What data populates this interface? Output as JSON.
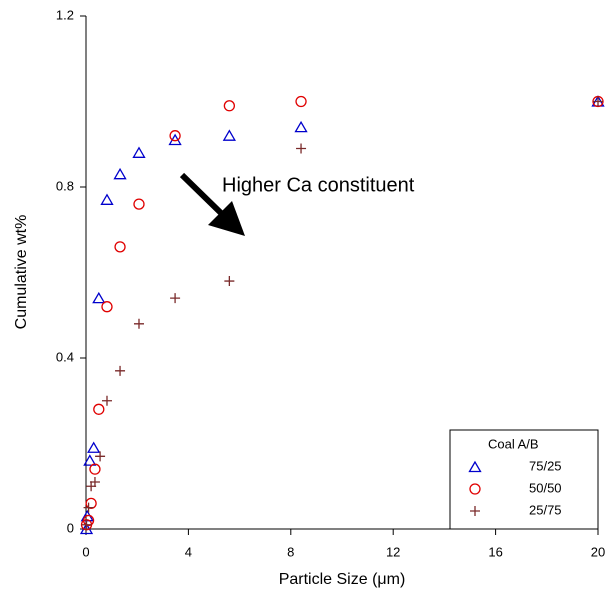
{
  "chart_data": {
    "type": "scatter",
    "xlabel": "Particle Size (μm)",
    "ylabel": "Cumulative wt%",
    "annotation": "Higher Ca constituent",
    "xlim": [
      0,
      20
    ],
    "ylim": [
      0,
      1.2
    ],
    "xticks": [
      0,
      4,
      8,
      12,
      16,
      20
    ],
    "yticks": [
      0,
      0.4,
      0.8,
      1.2
    ],
    "grid": false,
    "legend_title": "Coal A/B",
    "legend_position": "lower right",
    "series": [
      {
        "name": "75/25",
        "color": "#0000cc",
        "marker": "triangle",
        "x": [
          0.02,
          0.05,
          0.15,
          0.3,
          0.5,
          0.82,
          1.33,
          2.07,
          3.48,
          5.6,
          8.4,
          20
        ],
        "values": [
          0,
          0.03,
          0.16,
          0.19,
          0.54,
          0.77,
          0.83,
          0.88,
          0.91,
          0.92,
          0.94,
          1.0
        ]
      },
      {
        "name": "50/50",
        "color": "#e00000",
        "marker": "circle",
        "x": [
          0.02,
          0.1,
          0.2,
          0.35,
          0.5,
          0.82,
          1.33,
          2.07,
          3.48,
          5.6,
          8.4,
          20
        ],
        "values": [
          0.01,
          0.02,
          0.06,
          0.14,
          0.28,
          0.52,
          0.66,
          0.76,
          0.92,
          0.99,
          1.0,
          1.0
        ]
      },
      {
        "name": "25/75",
        "color": "#7a2a2a",
        "marker": "plus",
        "x": [
          0.02,
          0.1,
          0.2,
          0.35,
          0.55,
          0.82,
          1.33,
          2.07,
          3.48,
          5.6,
          8.4,
          20
        ],
        "values": [
          0.01,
          0.05,
          0.1,
          0.11,
          0.17,
          0.3,
          0.37,
          0.48,
          0.54,
          0.58,
          0.89,
          1.0
        ]
      }
    ]
  }
}
